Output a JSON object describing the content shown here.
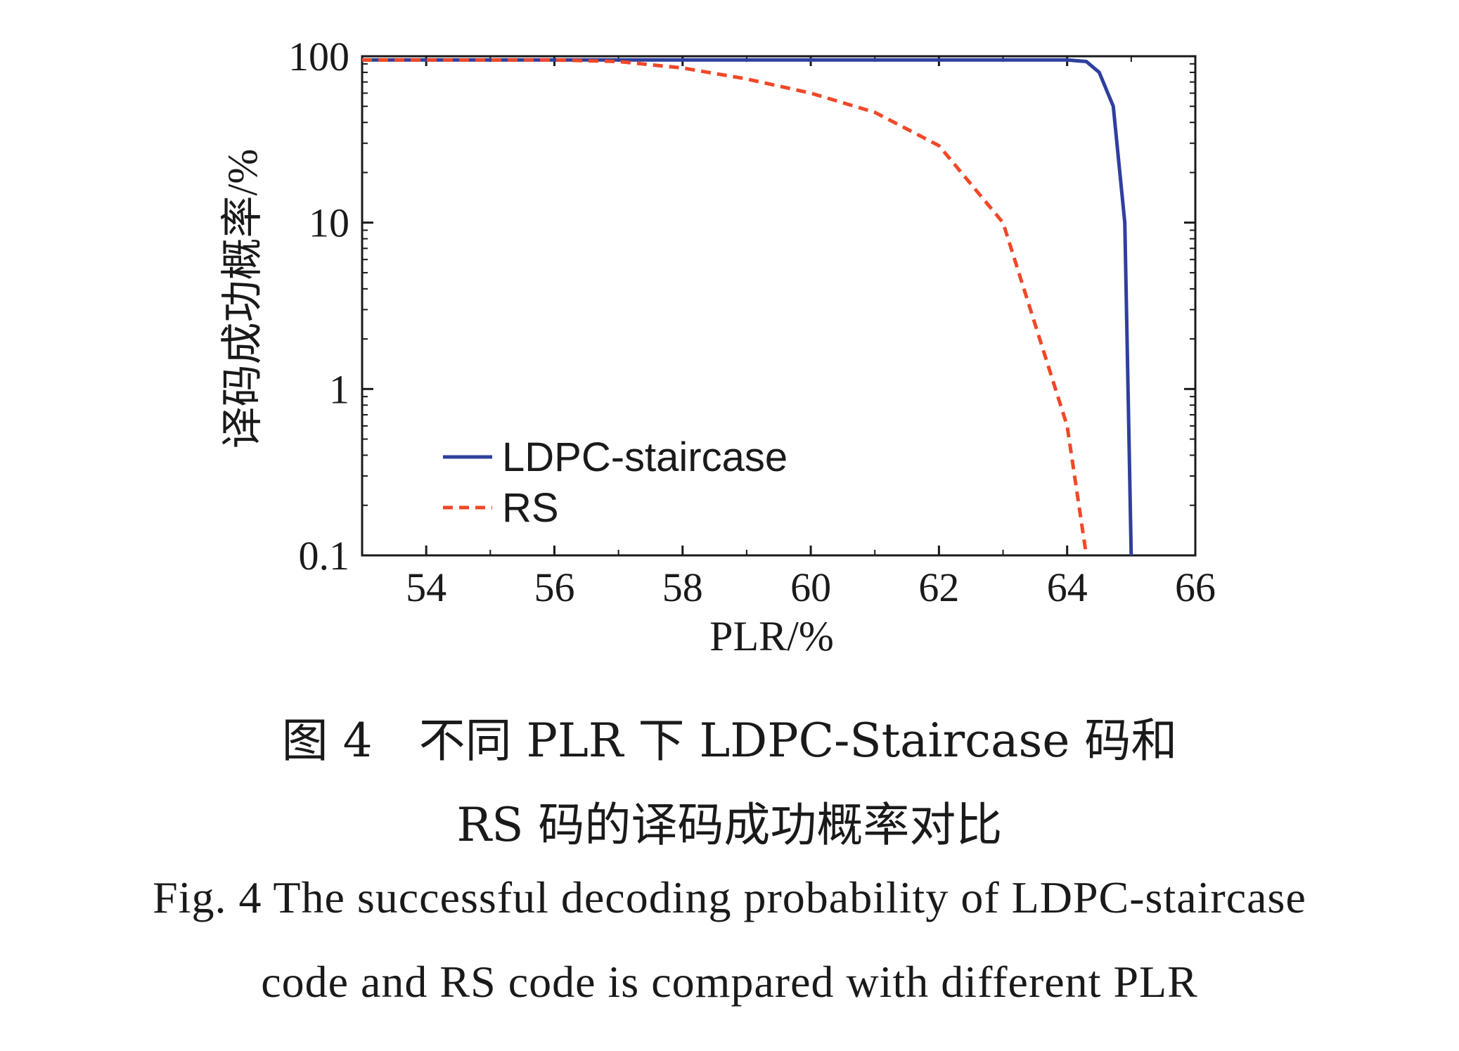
{
  "chart_data": {
    "type": "line",
    "xlabel": "PLR/%",
    "ylabel": "译码成功概率/%",
    "xlim": [
      53,
      66
    ],
    "ylim": [
      0.1,
      100
    ],
    "yscale": "log",
    "xticks": [
      54,
      56,
      58,
      60,
      62,
      64,
      66
    ],
    "yticks": [
      0.1,
      1,
      10,
      100
    ],
    "ytick_labels": [
      "0.1",
      "1",
      "10",
      "100"
    ],
    "grid": false,
    "legend_position": "lower-left",
    "series": [
      {
        "name": "LDPC-staircase",
        "color": "#2e3f9e",
        "style": "solid",
        "x": [
          53,
          54,
          56,
          58,
          60,
          62,
          63,
          64,
          64.3,
          64.5,
          64.72,
          64.9,
          64.95,
          65.0
        ],
        "y": [
          95,
          95,
          95,
          95,
          95,
          95,
          95,
          95,
          93,
          80,
          50,
          10,
          1,
          0.1
        ]
      },
      {
        "name": "RS",
        "color": "#f04828",
        "style": "dashed",
        "x": [
          53,
          54,
          56,
          57,
          58,
          59,
          60,
          61,
          62,
          63,
          64,
          64.3
        ],
        "y": [
          95,
          95,
          95,
          93,
          85,
          73,
          60,
          46,
          29,
          10,
          0.6,
          0.1
        ]
      }
    ]
  },
  "caption": {
    "cn_line1": "图 4　不同 PLR 下 LDPC-Staircase 码和",
    "cn_line2": "RS 码的译码成功概率对比",
    "en_line1": "Fig. 4  The successful decoding probability of LDPC-staircase",
    "en_line2": "code and RS code is compared with different PLR"
  }
}
